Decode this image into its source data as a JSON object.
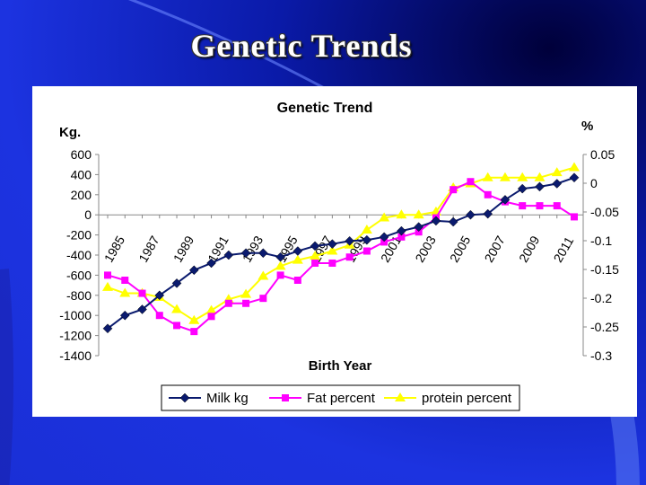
{
  "slide": {
    "title": "Genetic Trends"
  },
  "chart_data": {
    "type": "line",
    "title": "Genetic Trend",
    "xlabel": "Birth Year",
    "ylabel_left": "Kg.",
    "ylabel_right": "%",
    "x": [
      1985,
      1986,
      1987,
      1988,
      1989,
      1990,
      1991,
      1992,
      1993,
      1994,
      1995,
      1996,
      1997,
      1998,
      1999,
      2000,
      2001,
      2002,
      2003,
      2004,
      2005,
      2006,
      2007,
      2008,
      2009,
      2010,
      2011,
      2012
    ],
    "x_tick_labels": [
      "1985",
      "1987",
      "1989",
      "1991",
      "1993",
      "1995",
      "1997",
      "1999",
      "2001",
      "2003",
      "2005",
      "2007",
      "2009",
      "2011"
    ],
    "x_tick_values": [
      1985,
      1987,
      1989,
      1991,
      1993,
      1995,
      1997,
      1999,
      2001,
      2003,
      2005,
      2007,
      2009,
      2011
    ],
    "ylim_left": [
      -1400,
      600
    ],
    "yticks_left": [
      "600",
      "400",
      "200",
      "0",
      "-200",
      "-400",
      "-600",
      "-800",
      "-1000",
      "-1200",
      "-1400"
    ],
    "ylim_right": [
      -0.3,
      0.05
    ],
    "yticks_right": [
      "0.05",
      "0",
      "-0.05",
      "-0.1",
      "-0.15",
      "-0.2",
      "-0.25",
      "-0.3"
    ],
    "series": [
      {
        "name": "Milk kg",
        "axis": "left",
        "color": "#0a1a6e",
        "marker": "diamond",
        "values": [
          -1130,
          -1000,
          -940,
          -800,
          -680,
          -550,
          -480,
          -400,
          -380,
          -380,
          -420,
          -360,
          -310,
          -290,
          -260,
          -250,
          -220,
          -160,
          -120,
          -60,
          -70,
          0,
          10,
          150,
          260,
          280,
          310,
          370
        ]
      },
      {
        "name": "Fat percent",
        "axis": "left",
        "color": "#ff00ff",
        "marker": "square",
        "values": [
          -600,
          -650,
          -780,
          -1000,
          -1100,
          -1160,
          -1010,
          -880,
          -880,
          -830,
          -600,
          -650,
          -480,
          -480,
          -420,
          -360,
          -270,
          -220,
          -170,
          -30,
          250,
          330,
          200,
          130,
          90,
          90,
          90,
          -20
        ]
      },
      {
        "name": "protein percent",
        "axis": "left",
        "color": "#ffff00",
        "marker": "triangle",
        "values": [
          -720,
          -780,
          -780,
          -820,
          -940,
          -1050,
          -950,
          -840,
          -790,
          -610,
          -510,
          -450,
          -410,
          -360,
          -300,
          -150,
          -30,
          0,
          0,
          30,
          270,
          310,
          370,
          370,
          370,
          370,
          420,
          470
        ]
      }
    ],
    "grid": false,
    "legend_position": "bottom"
  }
}
